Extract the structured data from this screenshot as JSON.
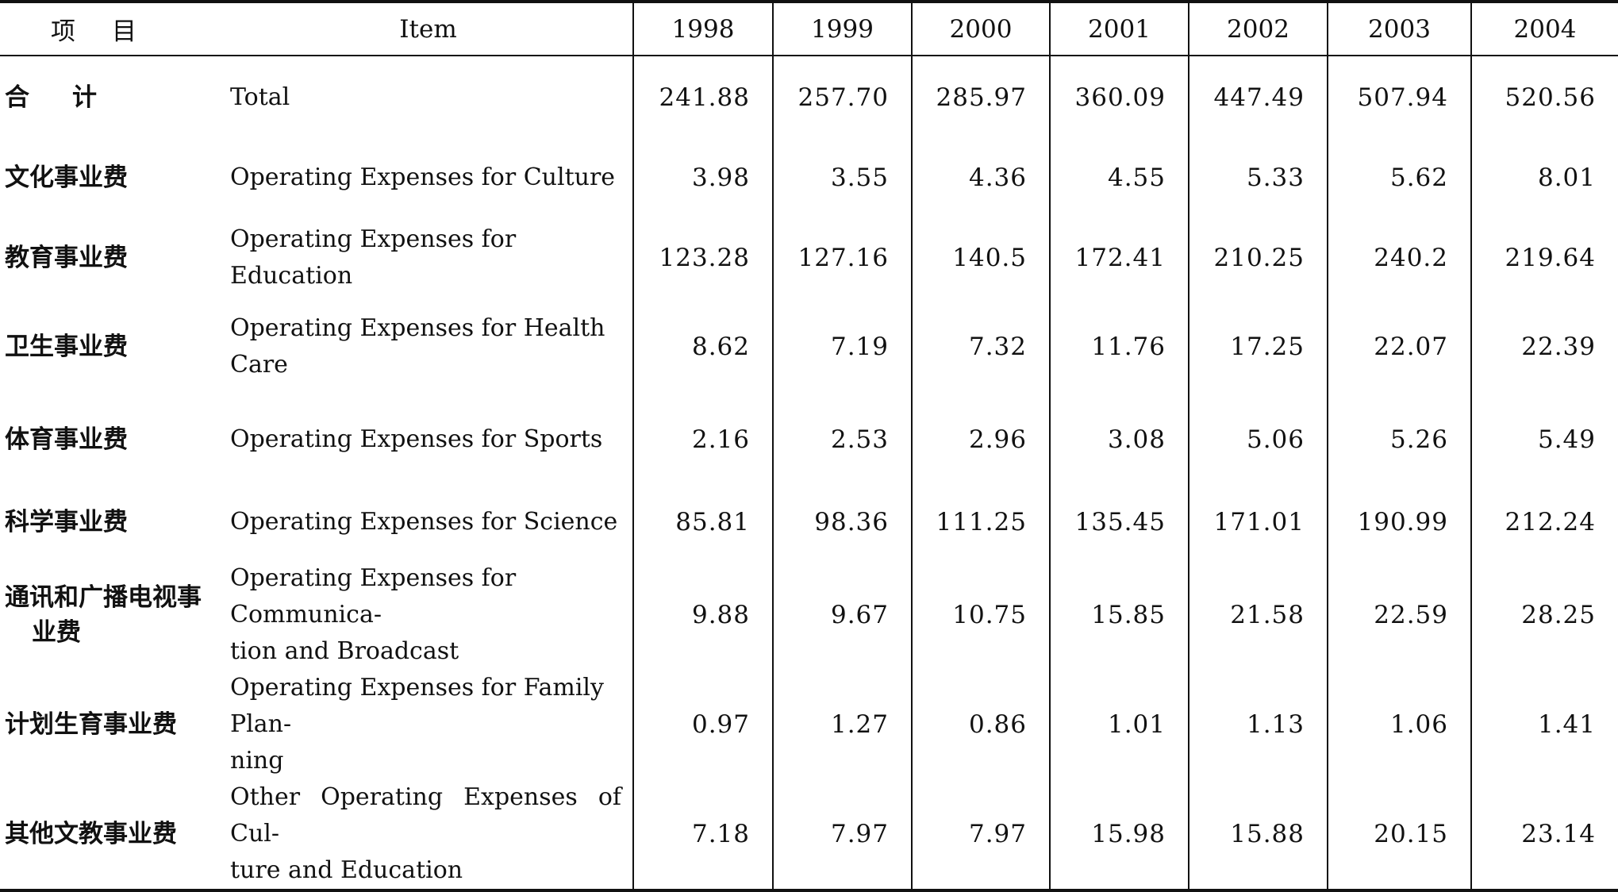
{
  "header": {
    "item_cn": "项目",
    "item_en": "Item",
    "years": [
      "1998",
      "1999",
      "2000",
      "2001",
      "2002",
      "2003",
      "2004"
    ]
  },
  "rows": [
    {
      "cn": [
        "合计"
      ],
      "en": [
        "Total"
      ],
      "values": [
        "241.88",
        "257.70",
        "285.97",
        "360.09",
        "447.49",
        "507.94",
        "520.56"
      ]
    },
    {
      "cn": [
        "文化事业费"
      ],
      "en": [
        "Operating Expenses for Culture"
      ],
      "values": [
        "3.98",
        "3.55",
        "4.36",
        "4.55",
        "5.33",
        "5.62",
        "8.01"
      ]
    },
    {
      "cn": [
        "教育事业费"
      ],
      "en": [
        "Operating Expenses for Education"
      ],
      "values": [
        "123.28",
        "127.16",
        "140.5",
        "172.41",
        "210.25",
        "240.2",
        "219.64"
      ]
    },
    {
      "cn": [
        "卫生事业费"
      ],
      "en": [
        "Operating Expenses for Health Care"
      ],
      "values": [
        "8.62",
        "7.19",
        "7.32",
        "11.76",
        "17.25",
        "22.07",
        "22.39"
      ]
    },
    {
      "cn": [
        "体育事业费"
      ],
      "en": [
        "Operating Expenses for Sports"
      ],
      "values": [
        "2.16",
        "2.53",
        "2.96",
        "3.08",
        "5.06",
        "5.26",
        "5.49"
      ]
    },
    {
      "cn": [
        "科学事业费"
      ],
      "en": [
        "Operating Expenses for Science"
      ],
      "values": [
        "85.81",
        "98.36",
        "111.25",
        "135.45",
        "171.01",
        "190.99",
        "212.24"
      ]
    },
    {
      "cn": [
        "通讯和广播电视事",
        "业费"
      ],
      "en": [
        "Operating Expenses for Communica-",
        "tion and Broadcast"
      ],
      "values": [
        "9.88",
        "9.67",
        "10.75",
        "15.85",
        "21.58",
        "22.59",
        "28.25"
      ]
    },
    {
      "cn": [
        "计划生育事业费"
      ],
      "en": [
        "Operating Expenses for Family Plan-",
        "ning"
      ],
      "values": [
        "0.97",
        "1.27",
        "0.86",
        "1.01",
        "1.13",
        "1.06",
        "1.41"
      ]
    },
    {
      "cn": [
        "其他文教事业费"
      ],
      "en": [
        "Other Operating Expenses of Cul-",
        "ture and Education"
      ],
      "values": [
        "7.18",
        "7.97",
        "7.97",
        "15.98",
        "15.88",
        "20.15",
        "23.14"
      ]
    }
  ]
}
